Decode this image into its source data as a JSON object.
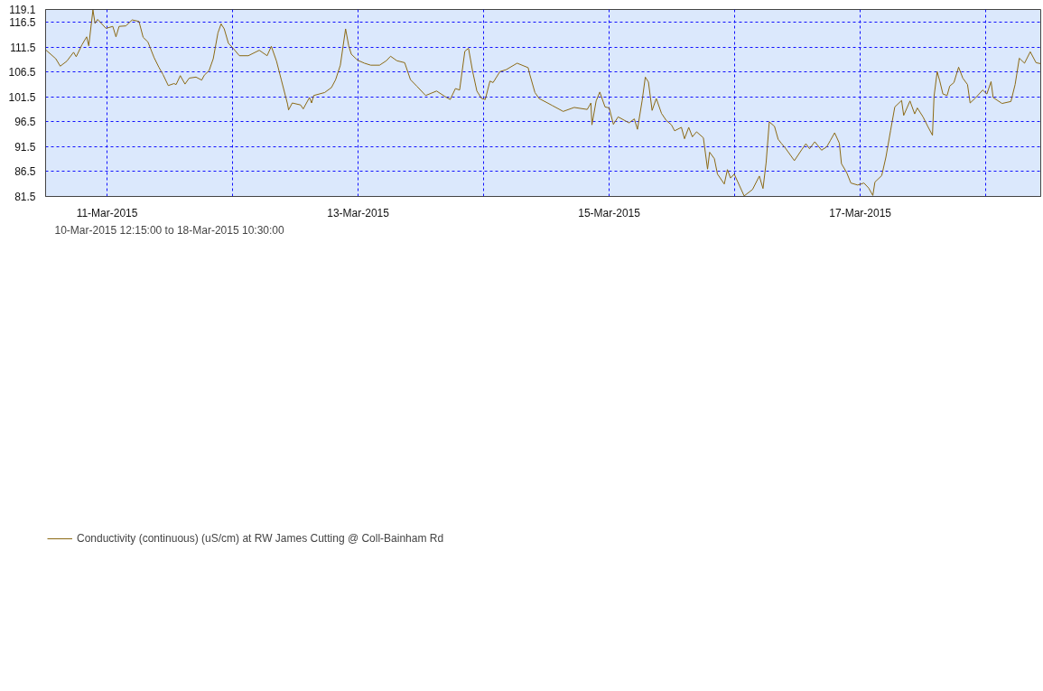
{
  "chart_data": {
    "type": "line",
    "legend": "bottom",
    "grid": true,
    "line_style": "solid",
    "annotations": [
      "10-Mar-2015 12:15:00 to 18-Mar-2015 10:30:00"
    ],
    "xlim": [
      "2015-03-10T12:15",
      "2015-03-18T10:30"
    ],
    "xticks": [
      {
        "value": "2015-03-11",
        "label": "11-Mar-2015"
      },
      {
        "value": "2015-03-12",
        "label": null
      },
      {
        "value": "2015-03-13",
        "label": "13-Mar-2015"
      },
      {
        "value": "2015-03-14",
        "label": null
      },
      {
        "value": "2015-03-15",
        "label": "15-Mar-2015"
      },
      {
        "value": "2015-03-16",
        "label": null
      },
      {
        "value": "2015-03-17",
        "label": "17-Mar-2015"
      },
      {
        "value": "2015-03-18",
        "label": null
      }
    ],
    "ylim": [
      81.5,
      119.1
    ],
    "yticks": [
      81.5,
      86.5,
      91.5,
      96.5,
      101.5,
      106.5,
      111.5,
      116.5,
      119.1
    ],
    "series": [
      {
        "name": "Conductivity (continuous) (uS/cm) at RW James Cutting @ Coll-Bainham Rd",
        "color": "#8b6914",
        "x": [
          "2015-03-10T12:15",
          "2015-03-10T14:12",
          "2015-03-10T15:03",
          "2015-03-10T16:18",
          "2015-03-10T17:36",
          "2015-03-10T18:06",
          "2015-03-10T19:12",
          "2015-03-10T20:06",
          "2015-03-10T20:30",
          "2015-03-10T21:18",
          "2015-03-10T21:42",
          "2015-03-10T22:12",
          "2015-03-10T23:48",
          "2015-03-11T01:06",
          "2015-03-11T01:42",
          "2015-03-11T02:18",
          "2015-03-11T03:36",
          "2015-03-11T04:48",
          "2015-03-11T06:06",
          "2015-03-11T06:54",
          "2015-03-11T07:48",
          "2015-03-11T09:00",
          "2015-03-11T09:54",
          "2015-03-11T10:42",
          "2015-03-11T11:42",
          "2015-03-11T12:48",
          "2015-03-11T13:12",
          "2015-03-11T14:00",
          "2015-03-11T14:54",
          "2015-03-11T15:42",
          "2015-03-11T17:00",
          "2015-03-11T18:06",
          "2015-03-11T18:36",
          "2015-03-11T19:30",
          "2015-03-11T20:18",
          "2015-03-11T21:12",
          "2015-03-11T21:48",
          "2015-03-11T22:24",
          "2015-03-11T23:12",
          "2015-03-12T00:06",
          "2015-03-12T01:18",
          "2015-03-12T03:00",
          "2015-03-12T05:06",
          "2015-03-12T06:36",
          "2015-03-12T07:24",
          "2015-03-12T08:24",
          "2015-03-12T09:18",
          "2015-03-12T10:30",
          "2015-03-12T10:42",
          "2015-03-12T11:24",
          "2015-03-12T13:00",
          "2015-03-12T13:30",
          "2015-03-12T14:42",
          "2015-03-12T15:06",
          "2015-03-12T15:30",
          "2015-03-12T17:36",
          "2015-03-12T18:54",
          "2015-03-12T19:42",
          "2015-03-12T20:36",
          "2015-03-12T21:36",
          "2015-03-12T22:12",
          "2015-03-12T22:42",
          "2015-03-12T23:54",
          "2015-03-13T01:12",
          "2015-03-13T02:24",
          "2015-03-13T04:06",
          "2015-03-13T05:24",
          "2015-03-13T06:12",
          "2015-03-13T07:24",
          "2015-03-13T08:54",
          "2015-03-13T10:00",
          "2015-03-13T11:12",
          "2015-03-13T12:54",
          "2015-03-13T15:00",
          "2015-03-13T16:36",
          "2015-03-13T17:36",
          "2015-03-13T18:36",
          "2015-03-13T19:24",
          "2015-03-13T20:24",
          "2015-03-13T21:06",
          "2015-03-13T21:54",
          "2015-03-13T22:42",
          "2015-03-13T23:36",
          "2015-03-14T00:18",
          "2015-03-14T01:12",
          "2015-03-14T01:48",
          "2015-03-14T03:06",
          "2015-03-14T04:18",
          "2015-03-14T06:24",
          "2015-03-14T08:30",
          "2015-03-14T08:48",
          "2015-03-14T09:48",
          "2015-03-14T10:36",
          "2015-03-14T13:06",
          "2015-03-14T15:12",
          "2015-03-14T17:18",
          "2015-03-14T19:48",
          "2015-03-14T20:30",
          "2015-03-14T20:42",
          "2015-03-14T21:30",
          "2015-03-14T22:12",
          "2015-03-14T23:12",
          "2015-03-15T00:00",
          "2015-03-15T00:48",
          "2015-03-15T01:42",
          "2015-03-15T03:48",
          "2015-03-15T04:48",
          "2015-03-15T05:24",
          "2015-03-15T06:18",
          "2015-03-15T06:54",
          "2015-03-15T07:30",
          "2015-03-15T08:12",
          "2015-03-15T09:00",
          "2015-03-15T10:00",
          "2015-03-15T10:54",
          "2015-03-15T11:54",
          "2015-03-15T12:30",
          "2015-03-15T13:48",
          "2015-03-15T14:24",
          "2015-03-15T15:12",
          "2015-03-15T15:54",
          "2015-03-15T16:42",
          "2015-03-15T18:00",
          "2015-03-15T18:48",
          "2015-03-15T19:12",
          "2015-03-15T20:06",
          "2015-03-15T20:42",
          "2015-03-15T22:00",
          "2015-03-15T22:36",
          "2015-03-15T23:12",
          "2015-03-15T23:54",
          "2015-03-16T01:48",
          "2015-03-16T03:24",
          "2015-03-16T04:42",
          "2015-03-16T05:24",
          "2015-03-16T06:00",
          "2015-03-16T06:36",
          "2015-03-16T07:36",
          "2015-03-16T08:18",
          "2015-03-16T08:54",
          "2015-03-16T09:42",
          "2015-03-16T11:24",
          "2015-03-16T12:48",
          "2015-03-16T13:36",
          "2015-03-16T14:18",
          "2015-03-16T15:18",
          "2015-03-16T16:36",
          "2015-03-16T17:36",
          "2015-03-16T18:18",
          "2015-03-16T19:06",
          "2015-03-16T20:00",
          "2015-03-16T20:24",
          "2015-03-16T21:24",
          "2015-03-16T22:12",
          "2015-03-16T23:30",
          "2015-03-17T00:42",
          "2015-03-17T01:36",
          "2015-03-17T02:24",
          "2015-03-17T02:48",
          "2015-03-17T04:06",
          "2015-03-17T04:54",
          "2015-03-17T05:48",
          "2015-03-17T06:36",
          "2015-03-17T07:54",
          "2015-03-17T08:18",
          "2015-03-17T09:30",
          "2015-03-17T10:24",
          "2015-03-17T10:54",
          "2015-03-17T12:00",
          "2015-03-17T12:54",
          "2015-03-17T13:48",
          "2015-03-17T14:06",
          "2015-03-17T14:42",
          "2015-03-17T15:12",
          "2015-03-17T15:48",
          "2015-03-17T16:36",
          "2015-03-17T17:06",
          "2015-03-17T17:54",
          "2015-03-17T18:48",
          "2015-03-17T19:36",
          "2015-03-17T20:30",
          "2015-03-17T21:00",
          "2015-03-17T22:06",
          "2015-03-17T23:24",
          "2015-03-18T00:12",
          "2015-03-18T01:00",
          "2015-03-18T01:24",
          "2015-03-18T03:06",
          "2015-03-18T04:48",
          "2015-03-18T05:36",
          "2015-03-18T06:24",
          "2015-03-18T07:24",
          "2015-03-18T08:30",
          "2015-03-18T09:36",
          "2015-03-18T10:30"
        ],
        "values": [
          111.0,
          109.2,
          107.7,
          108.7,
          110.5,
          109.6,
          112.0,
          113.6,
          111.8,
          119.0,
          116.3,
          117.1,
          115.3,
          115.7,
          113.6,
          115.7,
          115.8,
          117.0,
          116.7,
          113.5,
          112.6,
          109.4,
          107.5,
          106.0,
          103.8,
          104.2,
          104.0,
          105.8,
          104.1,
          105.3,
          105.5,
          104.9,
          105.9,
          106.8,
          109.2,
          114.4,
          116.2,
          115.2,
          112.3,
          111.3,
          109.8,
          109.8,
          110.9,
          109.8,
          111.7,
          108.7,
          105.0,
          100.1,
          98.9,
          100.3,
          99.9,
          99.1,
          101.4,
          100.3,
          101.8,
          102.4,
          103.4,
          105.0,
          107.9,
          115.2,
          111.8,
          110.1,
          108.9,
          108.3,
          107.9,
          107.9,
          108.8,
          109.7,
          108.8,
          108.4,
          105.0,
          103.7,
          101.8,
          102.7,
          101.6,
          101.0,
          103.2,
          102.9,
          110.7,
          111.3,
          106.6,
          102.7,
          101.2,
          101.0,
          104.7,
          104.4,
          106.6,
          107.0,
          108.3,
          107.4,
          106.1,
          102.4,
          101.2,
          99.8,
          98.6,
          99.4,
          99.0,
          100.3,
          95.9,
          100.7,
          102.5,
          99.5,
          99.3,
          96.0,
          97.5,
          96.3,
          97.1,
          95.0,
          100.8,
          105.5,
          104.5,
          98.8,
          101.2,
          98.2,
          96.8,
          95.9,
          94.7,
          95.4,
          93.1,
          95.4,
          93.5,
          94.5,
          93.3,
          87.0,
          90.4,
          89.1,
          86.0,
          84.0,
          86.9,
          85.2,
          86.0,
          81.6,
          82.9,
          85.6,
          83.1,
          88.3,
          96.5,
          95.6,
          93.0,
          92.2,
          91.2,
          88.7,
          90.9,
          92.1,
          91.1,
          92.5,
          90.8,
          91.5,
          92.8,
          94.3,
          92.2,
          88.1,
          86.3,
          84.2,
          83.8,
          84.2,
          83.2,
          81.7,
          84.4,
          85.7,
          89.4,
          94.8,
          99.5,
          100.8,
          97.8,
          100.7,
          98.1,
          99.3,
          97.5,
          95.6,
          93.8,
          101.6,
          106.6,
          104.7,
          102.1,
          101.8,
          103.7,
          104.4,
          107.5,
          105.3,
          104.0,
          100.3,
          101.4,
          102.9,
          102.1,
          104.6,
          101.4,
          100.2,
          100.6,
          104.0,
          109.3,
          108.3,
          110.6,
          108.4,
          108.2
        ]
      }
    ]
  }
}
